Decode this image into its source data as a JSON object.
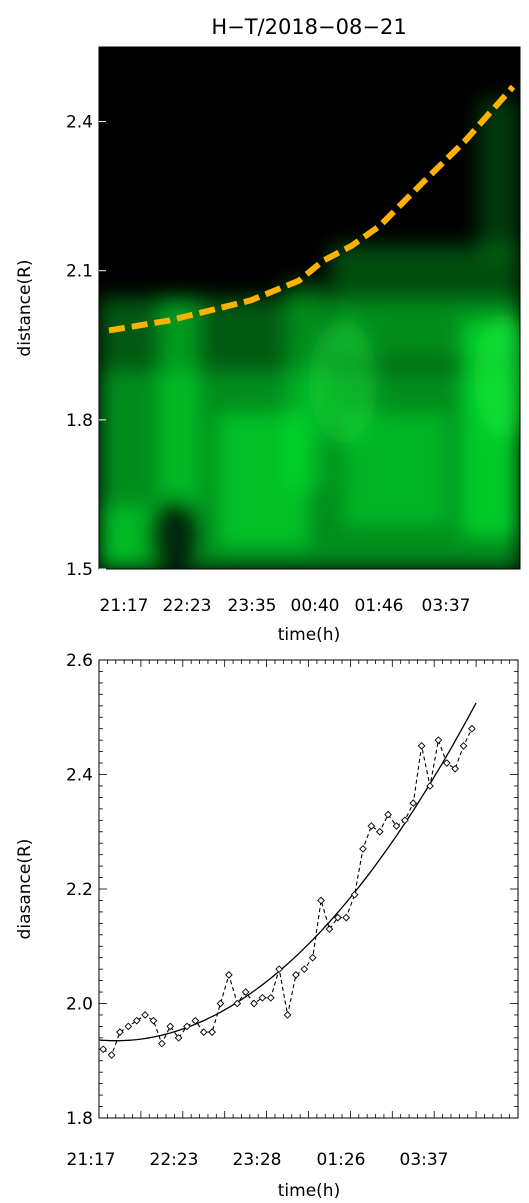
{
  "chart_data": [
    {
      "type": "heatmap",
      "title": "H−T/2018−08−21",
      "xlabel": "time(h)",
      "ylabel": "distance(R)",
      "x_tick_labels": [
        "21:17",
        "22:23",
        "23:35",
        "00:40",
        "01:46",
        "03:37"
      ],
      "y_ticks": [
        1.5,
        1.8,
        2.1,
        2.4
      ],
      "y_tick_labels": [
        "1.5",
        "1.8",
        "2.1",
        "2.4"
      ],
      "ylim": [
        1.5,
        2.55
      ],
      "colormap": [
        "#000000",
        "#00ff33"
      ],
      "track_color": "#ffb300",
      "track": {
        "x": [
          0.0,
          0.15,
          0.35,
          0.47,
          0.53,
          0.6,
          0.67,
          0.78,
          0.88,
          1.0
        ],
        "y": [
          1.98,
          2.0,
          2.04,
          2.08,
          2.12,
          2.15,
          2.19,
          2.28,
          2.36,
          2.47
        ]
      }
    },
    {
      "type": "line",
      "xlabel": "time(h)",
      "ylabel": "diasance(R)",
      "x_tick_labels": [
        "21:17",
        "22:23",
        "23:28",
        "01:26",
        "03:37"
      ],
      "y_ticks": [
        1.8,
        2.0,
        2.2,
        2.4,
        2.6
      ],
      "y_tick_labels": [
        "1.8",
        "2.0",
        "2.2",
        "2.4",
        "2.6"
      ],
      "ylim": [
        1.8,
        2.6
      ],
      "x_index_range": [
        0,
        50
      ],
      "series": [
        {
          "style": "dashed-diamond",
          "values": [
            1.92,
            1.91,
            1.95,
            1.96,
            1.97,
            1.98,
            1.97,
            1.93,
            1.96,
            1.94,
            1.96,
            1.97,
            1.95,
            1.95,
            2.0,
            2.05,
            2.0,
            2.02,
            2.0,
            2.01,
            2.01,
            2.06,
            1.98,
            2.05,
            2.06,
            2.08,
            2.18,
            2.13,
            2.15,
            2.15,
            2.19,
            2.27,
            2.31,
            2.3,
            2.33,
            2.31,
            2.32,
            2.35,
            2.45,
            2.38,
            2.46,
            2.42,
            2.41,
            2.45,
            2.48
          ]
        },
        {
          "style": "solid",
          "fit_quadratic": {
            "vertex_index": 2,
            "vertex_value": 1.935,
            "end_index": 45,
            "end_value": 2.525
          }
        }
      ]
    }
  ]
}
